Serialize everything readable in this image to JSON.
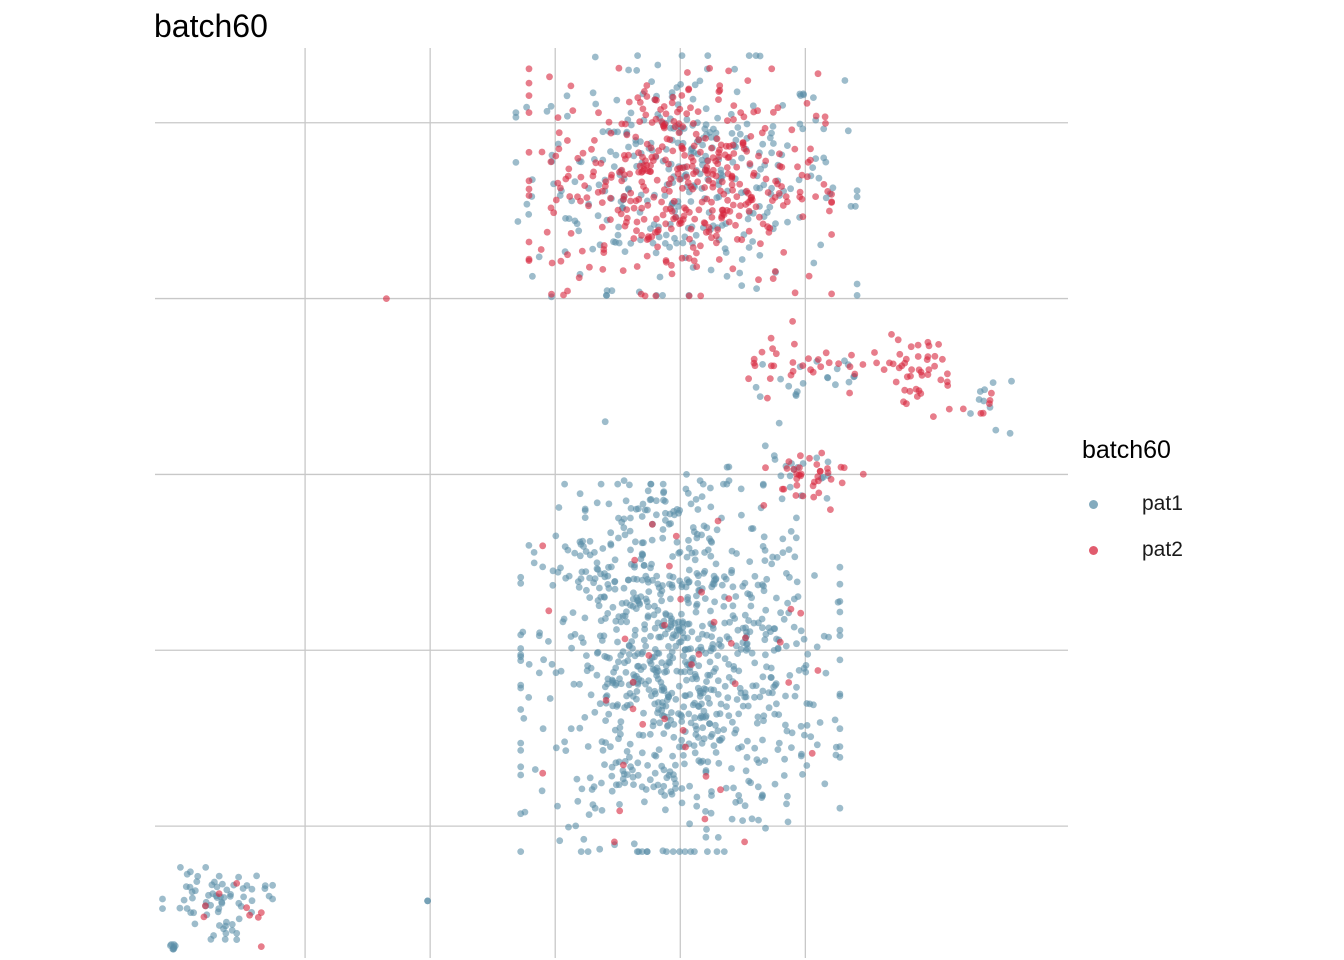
{
  "chart_data": {
    "type": "scatter",
    "title": "batch60",
    "xlabel": "",
    "ylabel": "",
    "xlim": [
      -2.2,
      5.1
    ],
    "ylim": [
      -5.5,
      4.85
    ],
    "grid": true,
    "legend": {
      "title": "batch60",
      "placement": "right",
      "entries": [
        {
          "label": "pat1",
          "color": "#5B8FA8"
        },
        {
          "label": "pat2",
          "color": "#D7263D"
        }
      ]
    },
    "series": [
      {
        "name": "pat1",
        "color": "#5B8FA8",
        "clusters": [
          {
            "cx": 2.05,
            "cy": 3.4,
            "sx": 0.62,
            "sy": 0.62,
            "n": 330
          },
          {
            "cx": 3.05,
            "cy": 1.1,
            "sx": 0.28,
            "sy": 0.18,
            "n": 20
          },
          {
            "cx": 2.9,
            "cy": 0.1,
            "sx": 0.25,
            "sy": 0.22,
            "n": 20
          },
          {
            "cx": 4.5,
            "cy": 0.8,
            "sx": 0.15,
            "sy": 0.2,
            "n": 10
          },
          {
            "cx": 2.0,
            "cy": -2.2,
            "sx": 0.58,
            "sy": 0.95,
            "n": 880
          },
          {
            "cx": 1.9,
            "cy": -0.4,
            "sx": 0.3,
            "sy": 0.15,
            "n": 40
          },
          {
            "cx": 1.3,
            "cy": -1.1,
            "sx": 0.18,
            "sy": 0.25,
            "n": 25
          },
          {
            "cx": 1.6,
            "cy": -3.5,
            "sx": 0.2,
            "sy": 0.1,
            "n": 15
          },
          {
            "cx": -1.7,
            "cy": -4.8,
            "sx": 0.2,
            "sy": 0.15,
            "n": 60
          },
          {
            "cx": -2.05,
            "cy": -5.35,
            "sx": 0.02,
            "sy": 0.04,
            "n": 8
          },
          {
            "cx": -1.62,
            "cy": -5.2,
            "sx": 0.1,
            "sy": 0.06,
            "n": 10
          }
        ],
        "extra_points": [
          [
            -0.02,
            -4.85
          ],
          [
            -0.02,
            -4.85
          ],
          [
            0.97,
            2.02
          ],
          [
            2.05,
            0.0
          ],
          [
            1.4,
            0.6
          ],
          [
            3.4,
            3.05
          ]
        ]
      },
      {
        "name": "pat2",
        "color": "#D7263D",
        "clusters": [
          {
            "cx": 2.0,
            "cy": 3.35,
            "sx": 0.55,
            "sy": 0.6,
            "n": 420
          },
          {
            "cx": 3.1,
            "cy": 1.3,
            "sx": 0.4,
            "sy": 0.2,
            "n": 40
          },
          {
            "cx": 3.9,
            "cy": 1.2,
            "sx": 0.15,
            "sy": 0.18,
            "n": 35
          },
          {
            "cx": 3.0,
            "cy": 0.0,
            "sx": 0.22,
            "sy": 0.16,
            "n": 35
          },
          {
            "cx": 4.3,
            "cy": 0.8,
            "sx": 0.15,
            "sy": 0.08,
            "n": 8
          },
          {
            "cx": 2.0,
            "cy": -2.2,
            "sx": 0.5,
            "sy": 0.9,
            "n": 40
          },
          {
            "cx": -1.6,
            "cy": -4.9,
            "sx": 0.2,
            "sy": 0.15,
            "n": 8
          }
        ],
        "extra_points": [
          [
            0.97,
            2.05
          ],
          [
            -1.35,
            -5.37
          ],
          [
            3.2,
            -0.4
          ],
          [
            -0.35,
            2.0
          ]
        ]
      }
    ]
  }
}
